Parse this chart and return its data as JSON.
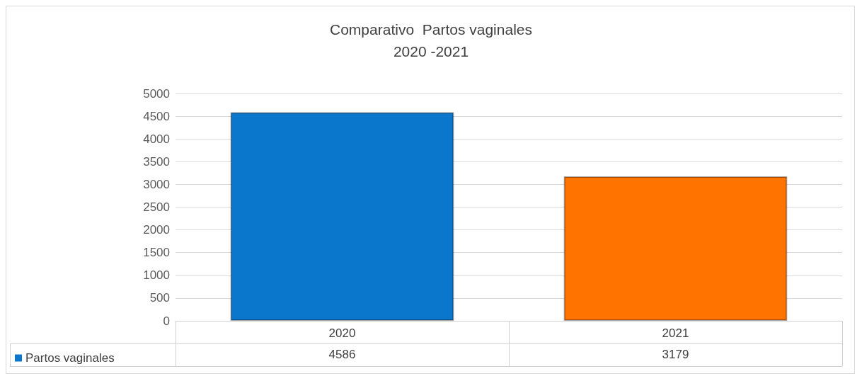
{
  "chart_data": {
    "type": "bar",
    "title": "Comparativo  Partos vaginales",
    "subtitle": "2020 -2021",
    "categories": [
      "2020",
      "2021"
    ],
    "series": [
      {
        "name": "Partos vaginales",
        "values": [
          4586,
          3179
        ],
        "colors": [
          "#0a77cc",
          "#ff7300"
        ]
      }
    ],
    "ylim": [
      0,
      5000
    ],
    "yticks": [
      0,
      500,
      1000,
      1500,
      2000,
      2500,
      3000,
      3500,
      4000,
      4500,
      5000
    ],
    "grid": "y",
    "legend": "bottom left",
    "data_labels": true
  }
}
